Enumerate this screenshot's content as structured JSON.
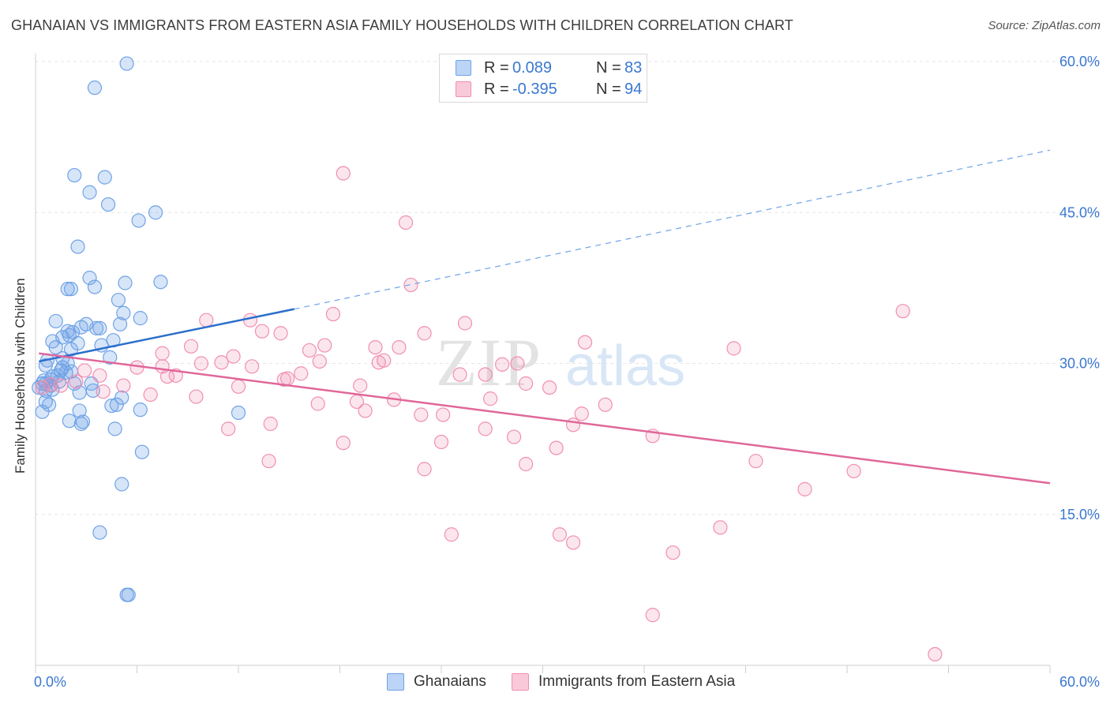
{
  "title": "GHANAIAN VS IMMIGRANTS FROM EASTERN ASIA FAMILY HOUSEHOLDS WITH CHILDREN CORRELATION CHART",
  "source": "Source: ZipAtlas.com",
  "watermark": {
    "zip": "ZIP",
    "atlas": "atlas"
  },
  "legend": {
    "rows": [
      {
        "r_label": "R =",
        "r_value": "0.089",
        "n_label": "N =",
        "n_value": "83",
        "color": "#6fa3e6"
      },
      {
        "r_label": "R =",
        "r_value": "-0.395",
        "n_label": "N =",
        "n_value": "94",
        "color": "#f08fb0"
      }
    ]
  },
  "bottom_legend": [
    "Ghanaians",
    "Immigrants from Eastern Asia"
  ],
  "chart_data": {
    "type": "scatter",
    "xlabel": "",
    "ylabel": "Family Households with Children",
    "xlim": [
      0,
      60
    ],
    "ylim": [
      0,
      60
    ],
    "x_tick_labels": [
      "0.0%",
      "60.0%"
    ],
    "y_tick_labels": [
      {
        "value": 15,
        "label": "15.0%"
      },
      {
        "value": 30,
        "label": "30.0%"
      },
      {
        "value": 45,
        "label": "45.0%"
      },
      {
        "value": 60,
        "label": "60.0%"
      }
    ],
    "grid": true,
    "series": [
      {
        "name": "Ghanaians",
        "color": "#6fa3e6",
        "trend": {
          "x": [
            0.2,
            15.3
          ],
          "y": [
            30.2,
            35.4
          ],
          "dashed_to": [
            60,
            51.2
          ]
        },
        "points": [
          [
            5.4,
            59.8
          ],
          [
            3.5,
            57.4
          ],
          [
            2.3,
            48.7
          ],
          [
            4.1,
            48.5
          ],
          [
            3.2,
            47.0
          ],
          [
            4.3,
            45.8
          ],
          [
            7.1,
            45.0
          ],
          [
            6.1,
            44.2
          ],
          [
            2.5,
            41.6
          ],
          [
            3.2,
            38.5
          ],
          [
            3.5,
            37.6
          ],
          [
            5.3,
            38.0
          ],
          [
            7.4,
            38.1
          ],
          [
            1.9,
            37.4
          ],
          [
            2.1,
            37.4
          ],
          [
            4.9,
            36.3
          ],
          [
            5.2,
            35.0
          ],
          [
            6.2,
            34.5
          ],
          [
            1.2,
            34.2
          ],
          [
            3.0,
            33.9
          ],
          [
            5.0,
            33.9
          ],
          [
            2.7,
            33.6
          ],
          [
            1.9,
            33.2
          ],
          [
            2.2,
            33.1
          ],
          [
            3.6,
            33.5
          ],
          [
            3.8,
            33.5
          ],
          [
            2.0,
            32.8
          ],
          [
            1.6,
            32.6
          ],
          [
            4.6,
            32.3
          ],
          [
            1.0,
            32.2
          ],
          [
            2.5,
            32.0
          ],
          [
            3.9,
            31.8
          ],
          [
            1.2,
            31.6
          ],
          [
            2.1,
            31.4
          ],
          [
            4.4,
            30.6
          ],
          [
            1.6,
            30.5
          ],
          [
            0.7,
            30.3
          ],
          [
            1.9,
            30.0
          ],
          [
            0.6,
            29.8
          ],
          [
            1.6,
            29.6
          ],
          [
            1.5,
            29.3
          ],
          [
            1.8,
            29.1
          ],
          [
            2.1,
            29.2
          ],
          [
            1.3,
            28.8
          ],
          [
            1.0,
            28.7
          ],
          [
            0.9,
            28.4
          ],
          [
            0.5,
            28.3
          ],
          [
            0.6,
            28.0
          ],
          [
            0.4,
            28.0
          ],
          [
            1.4,
            28.2
          ],
          [
            2.3,
            28.0
          ],
          [
            3.3,
            28.0
          ],
          [
            0.9,
            27.8
          ],
          [
            0.2,
            27.6
          ],
          [
            0.6,
            27.3
          ],
          [
            1.0,
            27.4
          ],
          [
            2.6,
            27.1
          ],
          [
            3.4,
            27.3
          ],
          [
            0.6,
            26.2
          ],
          [
            5.1,
            26.6
          ],
          [
            0.8,
            25.9
          ],
          [
            4.8,
            25.9
          ],
          [
            4.5,
            25.8
          ],
          [
            6.2,
            25.4
          ],
          [
            0.4,
            25.2
          ],
          [
            2.6,
            25.3
          ],
          [
            12.0,
            25.1
          ],
          [
            2.0,
            24.3
          ],
          [
            2.8,
            24.2
          ],
          [
            2.7,
            24.0
          ],
          [
            4.7,
            23.5
          ],
          [
            6.3,
            21.2
          ],
          [
            5.1,
            18.0
          ],
          [
            3.8,
            13.2
          ],
          [
            5.4,
            7.0
          ],
          [
            5.5,
            7.0
          ]
        ]
      },
      {
        "name": "Immigrants from Eastern Asia",
        "color": "#f08fb0",
        "trend": {
          "x": [
            0.2,
            60
          ],
          "y": [
            31.0,
            18.1
          ]
        },
        "points": [
          [
            18.2,
            48.9
          ],
          [
            21.9,
            44.0
          ],
          [
            22.2,
            37.8
          ],
          [
            51.3,
            35.2
          ],
          [
            17.6,
            34.9
          ],
          [
            10.1,
            34.3
          ],
          [
            12.7,
            34.3
          ],
          [
            25.4,
            34.0
          ],
          [
            13.4,
            33.2
          ],
          [
            23.0,
            33.0
          ],
          [
            14.5,
            33.0
          ],
          [
            32.5,
            32.1
          ],
          [
            9.2,
            31.7
          ],
          [
            17.1,
            31.8
          ],
          [
            20.1,
            31.6
          ],
          [
            21.5,
            31.6
          ],
          [
            16.2,
            31.3
          ],
          [
            41.3,
            31.5
          ],
          [
            11.7,
            30.7
          ],
          [
            11.0,
            30.1
          ],
          [
            16.8,
            30.2
          ],
          [
            20.6,
            30.3
          ],
          [
            20.3,
            30.1
          ],
          [
            9.8,
            30.0
          ],
          [
            28.5,
            30.0
          ],
          [
            27.6,
            29.9
          ],
          [
            12.8,
            29.7
          ],
          [
            7.5,
            29.7
          ],
          [
            6.0,
            29.6
          ],
          [
            2.9,
            29.3
          ],
          [
            15.7,
            29.0
          ],
          [
            26.6,
            28.9
          ],
          [
            8.3,
            28.8
          ],
          [
            25.1,
            28.9
          ],
          [
            14.9,
            28.5
          ],
          [
            3.8,
            28.8
          ],
          [
            7.8,
            28.7
          ],
          [
            14.7,
            28.4
          ],
          [
            29.0,
            28.0
          ],
          [
            2.4,
            28.2
          ],
          [
            5.2,
            27.8
          ],
          [
            0.9,
            27.9
          ],
          [
            1.5,
            27.8
          ],
          [
            0.4,
            27.6
          ],
          [
            4.0,
            27.2
          ],
          [
            12.0,
            27.7
          ],
          [
            19.2,
            27.8
          ],
          [
            30.4,
            27.6
          ],
          [
            9.5,
            26.7
          ],
          [
            6.8,
            26.9
          ],
          [
            19.0,
            26.2
          ],
          [
            26.9,
            26.5
          ],
          [
            16.7,
            26.0
          ],
          [
            21.2,
            26.4
          ],
          [
            33.7,
            25.9
          ],
          [
            19.5,
            25.3
          ],
          [
            24.1,
            24.9
          ],
          [
            22.8,
            24.9
          ],
          [
            32.3,
            25.0
          ],
          [
            13.9,
            24.0
          ],
          [
            31.8,
            23.9
          ],
          [
            26.6,
            23.5
          ],
          [
            11.4,
            23.5
          ],
          [
            18.2,
            22.1
          ],
          [
            24.0,
            22.2
          ],
          [
            30.8,
            21.6
          ],
          [
            28.3,
            22.7
          ],
          [
            36.5,
            22.8
          ],
          [
            13.8,
            20.3
          ],
          [
            23.0,
            19.5
          ],
          [
            42.6,
            20.3
          ],
          [
            29.0,
            20.0
          ],
          [
            48.4,
            19.3
          ],
          [
            45.5,
            17.5
          ],
          [
            24.6,
            13.0
          ],
          [
            31.0,
            13.0
          ],
          [
            40.5,
            13.7
          ],
          [
            31.8,
            12.2
          ],
          [
            37.7,
            11.2
          ],
          [
            36.5,
            5.0
          ],
          [
            53.2,
            1.1
          ],
          [
            7.5,
            31.0
          ]
        ]
      }
    ]
  }
}
